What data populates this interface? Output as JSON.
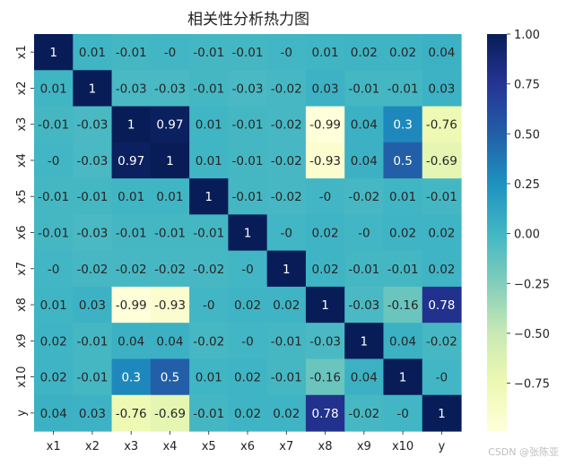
{
  "chart_data": {
    "type": "heatmap",
    "title": "相关性分析热力图",
    "row_labels": [
      "x1",
      "x2",
      "x3",
      "x4",
      "x5",
      "x6",
      "x7",
      "x8",
      "x9",
      "x10",
      "y"
    ],
    "col_labels": [
      "x1",
      "x2",
      "x3",
      "x4",
      "x5",
      "x6",
      "x7",
      "x8",
      "x9",
      "x10",
      "y"
    ],
    "display_values": [
      [
        "1",
        "0.01",
        "-0.01",
        "-0",
        "-0.01",
        "-0.01",
        "-0",
        "0.01",
        "0.02",
        "0.02",
        "0.04"
      ],
      [
        "0.01",
        "1",
        "-0.03",
        "-0.03",
        "-0.01",
        "-0.03",
        "-0.02",
        "0.03",
        "-0.01",
        "-0.01",
        "0.03"
      ],
      [
        "-0.01",
        "-0.03",
        "1",
        "0.97",
        "0.01",
        "-0.01",
        "-0.02",
        "-0.99",
        "0.04",
        "0.3",
        "-0.76"
      ],
      [
        "-0",
        "-0.03",
        "0.97",
        "1",
        "0.01",
        "-0.01",
        "-0.02",
        "-0.93",
        "0.04",
        "0.5",
        "-0.69"
      ],
      [
        "-0.01",
        "-0.01",
        "0.01",
        "0.01",
        "1",
        "-0.01",
        "-0.02",
        "-0",
        "-0.02",
        "0.01",
        "-0.01"
      ],
      [
        "-0.01",
        "-0.03",
        "-0.01",
        "-0.01",
        "-0.01",
        "1",
        "-0",
        "0.02",
        "-0",
        "0.02",
        "0.02"
      ],
      [
        "-0",
        "-0.02",
        "-0.02",
        "-0.02",
        "-0.02",
        "-0",
        "1",
        "0.02",
        "-0.01",
        "-0.01",
        "0.02"
      ],
      [
        "0.01",
        "0.03",
        "-0.99",
        "-0.93",
        "-0",
        "0.02",
        "0.02",
        "1",
        "-0.03",
        "-0.16",
        "0.78"
      ],
      [
        "0.02",
        "-0.01",
        "0.04",
        "0.04",
        "-0.02",
        "-0",
        "-0.01",
        "-0.03",
        "1",
        "0.04",
        "-0.02"
      ],
      [
        "0.02",
        "-0.01",
        "0.3",
        "0.5",
        "0.01",
        "0.02",
        "-0.01",
        "-0.16",
        "0.04",
        "1",
        "-0"
      ],
      [
        "0.04",
        "0.03",
        "-0.76",
        "-0.69",
        "-0.01",
        "0.02",
        "0.02",
        "0.78",
        "-0.02",
        "-0",
        "1"
      ]
    ],
    "colormap": "YlGnBu",
    "colormap_stops": [
      "#ffffd9",
      "#edf8b1",
      "#c7e9b4",
      "#7fcdbb",
      "#41b6c4",
      "#1d91c0",
      "#225ea8",
      "#253494",
      "#081d58"
    ],
    "vmin": -0.99,
    "vmax": 1.0,
    "colorbar_ticks": [
      "1.00",
      "0.75",
      "0.50",
      "0.25",
      "0.00",
      "−0.25",
      "−0.50",
      "−0.75"
    ],
    "colorbar_tick_values": [
      1.0,
      0.75,
      0.5,
      0.25,
      0.0,
      -0.25,
      -0.5,
      -0.75
    ],
    "colorbar_position": "right",
    "grid": false
  },
  "watermark": "CSDN @张陈亚"
}
